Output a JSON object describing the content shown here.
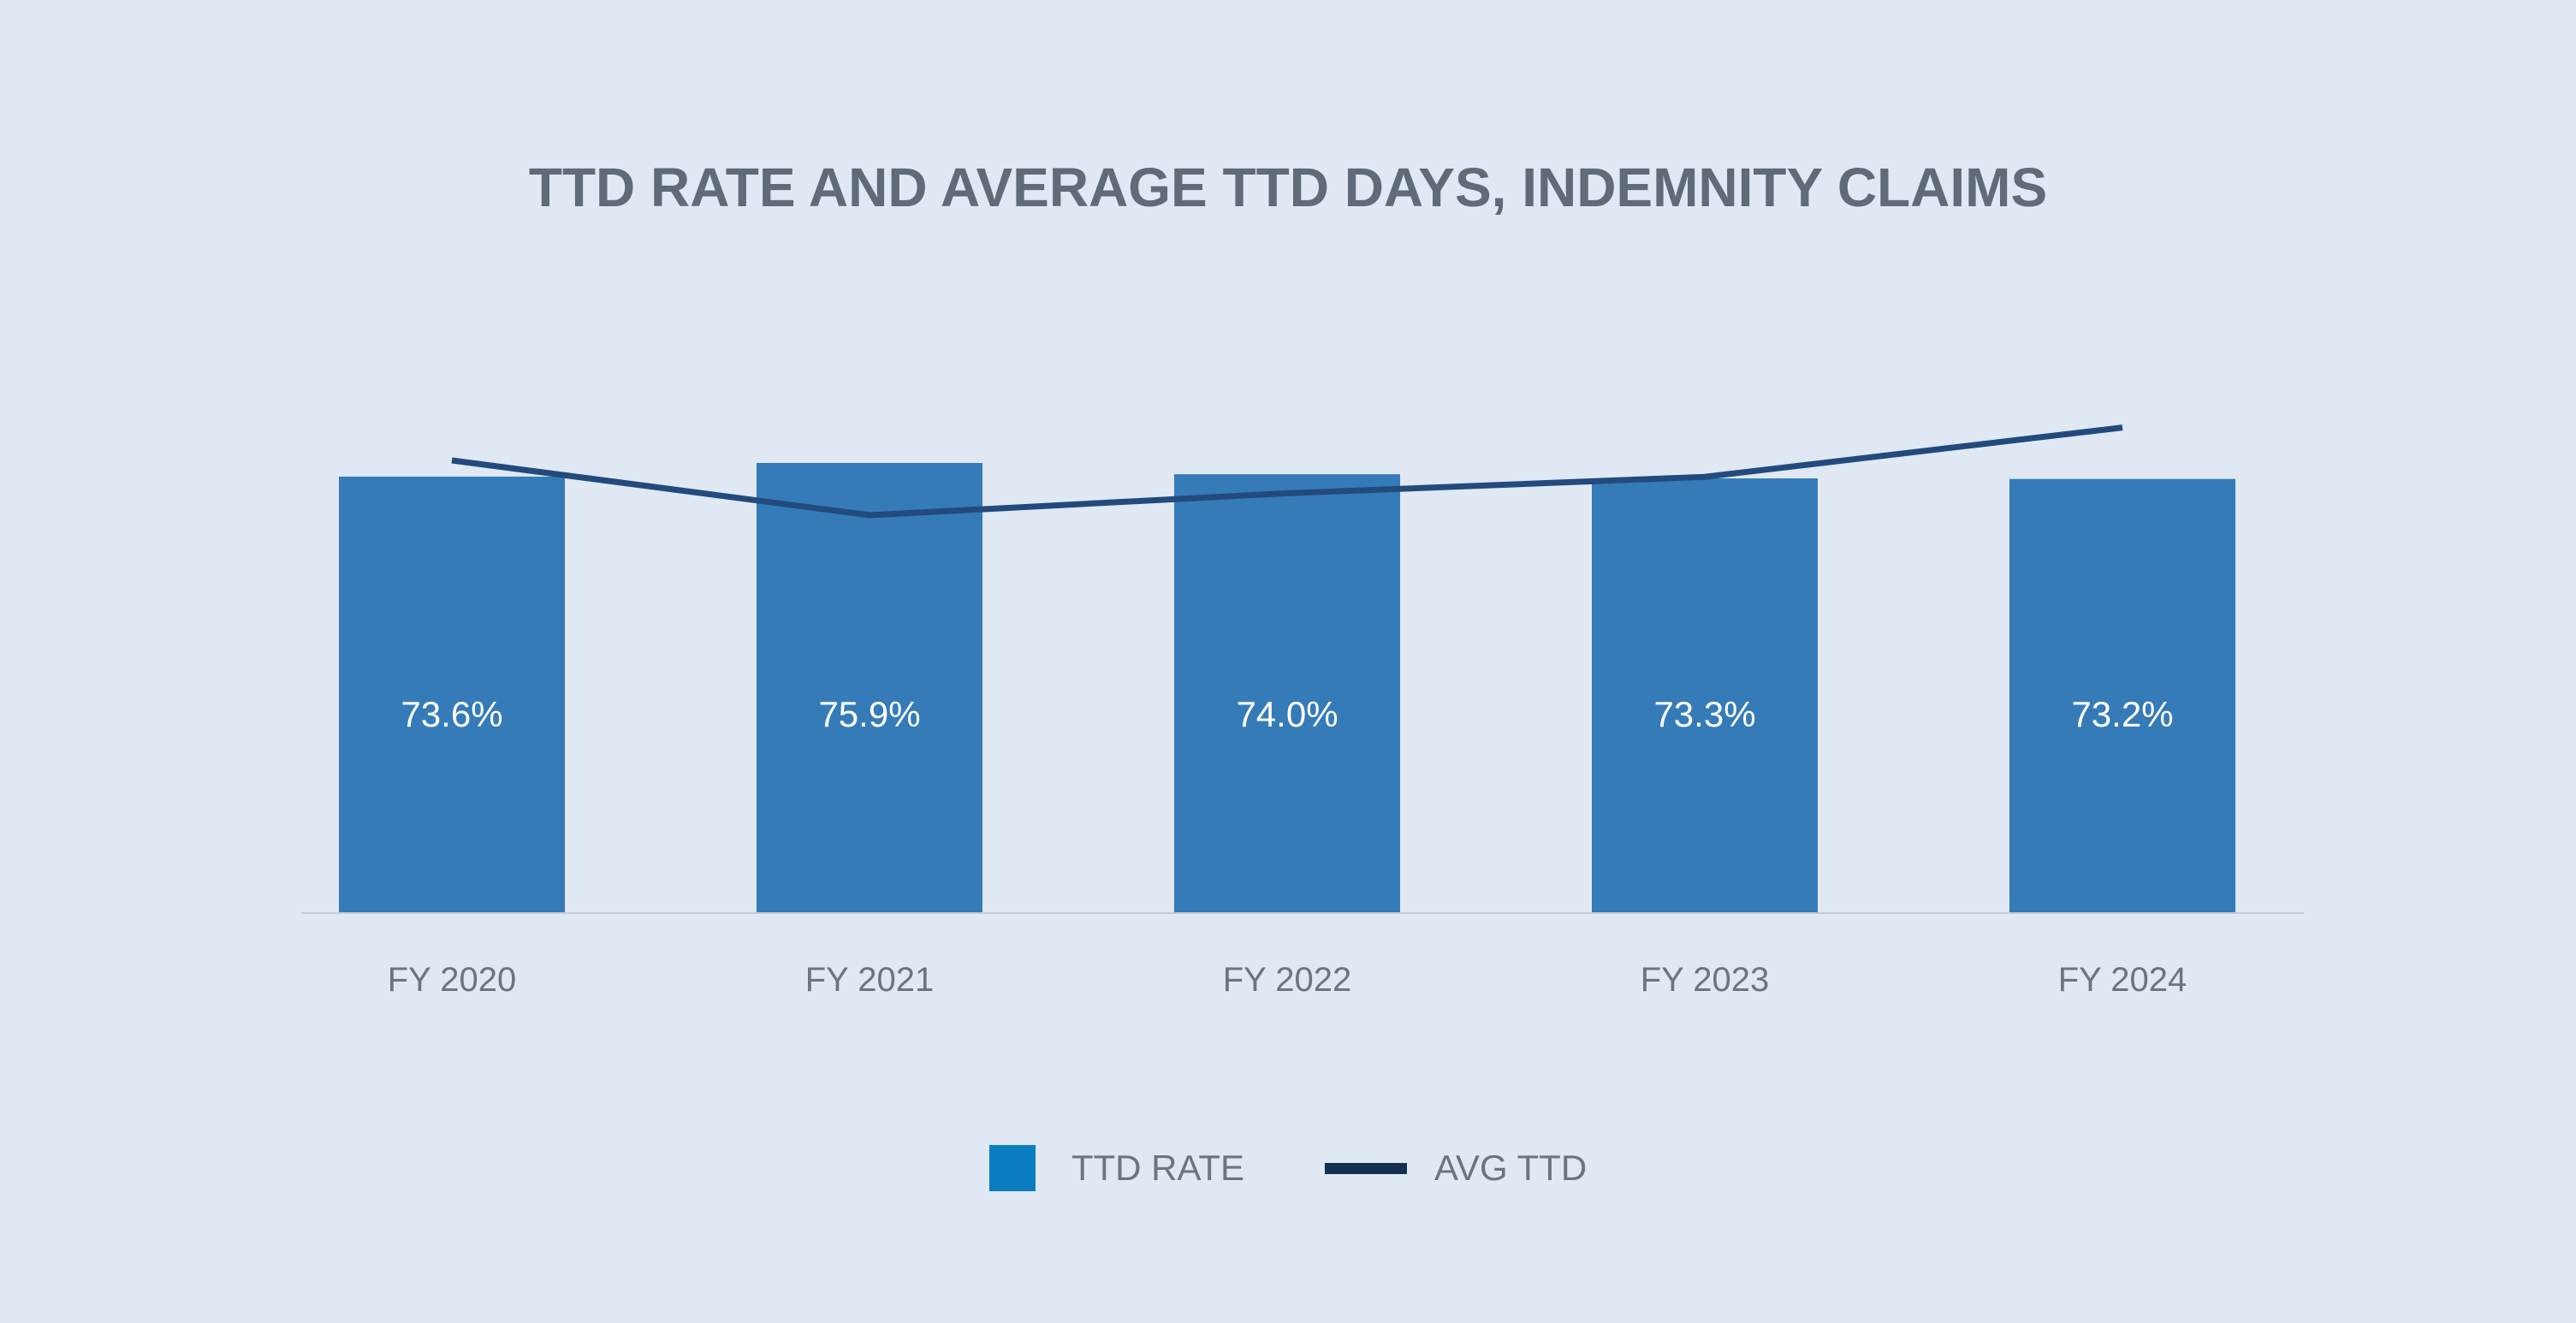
{
  "chart_data": {
    "type": "bar",
    "title": "TTD RATE AND AVERAGE TTD DAYS, INDEMNITY CLAIMS",
    "categories": [
      "FY 2020",
      "FY 2021",
      "FY 2022",
      "FY 2023",
      "FY 2024"
    ],
    "series": [
      {
        "name": "TTD RATE",
        "kind": "bar",
        "values": [
          73.6,
          75.9,
          74.0,
          73.3,
          73.2
        ],
        "labels": [
          "73.6%",
          "75.9%",
          "74.0%",
          "73.3%",
          "73.2%"
        ],
        "color": "#357bb8",
        "legend_color": "#0b7dc0"
      },
      {
        "name": "AVG TTD",
        "kind": "line",
        "values": [
          79,
          74,
          76,
          77.5,
          82
        ],
        "color": "#234a7c",
        "legend_color": "#12304f"
      }
    ],
    "ylim": [
      0,
      100
    ],
    "grid": false,
    "legend": "bottom-center"
  }
}
